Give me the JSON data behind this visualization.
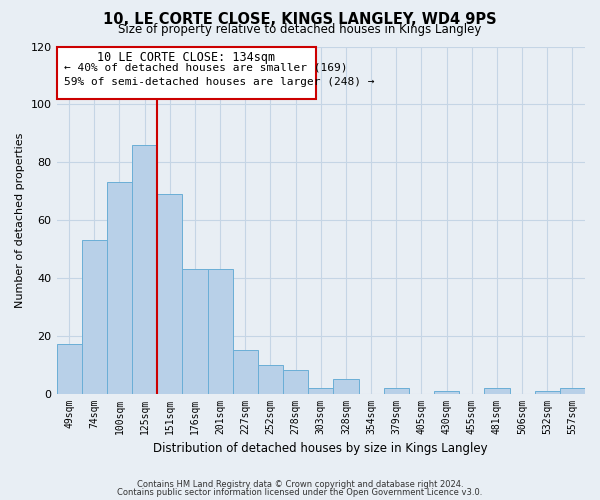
{
  "title": "10, LE CORTE CLOSE, KINGS LANGLEY, WD4 9PS",
  "subtitle": "Size of property relative to detached houses in Kings Langley",
  "xlabel": "Distribution of detached houses by size in Kings Langley",
  "ylabel": "Number of detached properties",
  "all_labels": [
    "49sqm",
    "74sqm",
    "100sqm",
    "125sqm",
    "151sqm",
    "176sqm",
    "201sqm",
    "227sqm",
    "252sqm",
    "278sqm",
    "303sqm",
    "328sqm",
    "354sqm",
    "379sqm",
    "405sqm",
    "430sqm",
    "455sqm",
    "481sqm",
    "506sqm",
    "532sqm",
    "557sqm"
  ],
  "all_values": [
    17,
    53,
    73,
    86,
    69,
    43,
    43,
    15,
    10,
    8,
    2,
    5,
    0,
    2,
    0,
    1,
    0,
    2,
    0,
    1,
    2
  ],
  "bar_color": "#b8d0e8",
  "bar_edge_color": "#6aaed6",
  "marker_label": "10 LE CORTE CLOSE: 134sqm",
  "annotation_line1": "← 40% of detached houses are smaller (169)",
  "annotation_line2": "59% of semi-detached houses are larger (248) →",
  "box_color": "#ffffff",
  "box_edge_color": "#cc0000",
  "marker_line_color": "#cc0000",
  "ylim": [
    0,
    120
  ],
  "yticks": [
    0,
    20,
    40,
    60,
    80,
    100,
    120
  ],
  "footnote1": "Contains HM Land Registry data © Crown copyright and database right 2024.",
  "footnote2": "Contains public sector information licensed under the Open Government Licence v3.0.",
  "bg_color": "#e8eef4",
  "plot_bg_color": "#e8eef4",
  "grid_color": "#c5d5e5"
}
